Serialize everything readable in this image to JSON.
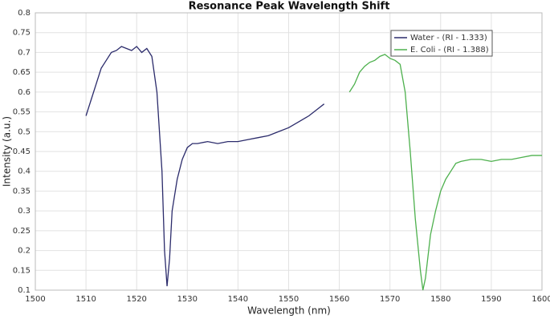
{
  "chart_data": {
    "type": "line",
    "title": "Resonance Peak Wavelength Shift",
    "x_label": "Wavelength (nm)",
    "y_label": "Intensity (a.u.)",
    "xlim": [
      1500,
      1600
    ],
    "xticks": [
      1500,
      1510,
      1520,
      1530,
      1540,
      1550,
      1560,
      1570,
      1580,
      1590,
      1600
    ],
    "ylim": [
      0.1,
      0.8
    ],
    "yticks": [
      0.1,
      0.15,
      0.2,
      0.25,
      0.3,
      0.35,
      0.4,
      0.45,
      0.5,
      0.55,
      0.6,
      0.65,
      0.7,
      0.75,
      0.8
    ],
    "grid": true,
    "legend": "upper right",
    "series": [
      {
        "name": "Water - (RI - 1.333)",
        "color": "#2b2b6b",
        "x": [
          1510,
          1511,
          1512,
          1513,
          1514,
          1515,
          1516,
          1517,
          1518,
          1519,
          1520,
          1521,
          1522,
          1523,
          1524,
          1525,
          1525.5,
          1526,
          1526.5,
          1527,
          1528,
          1529,
          1530,
          1531,
          1532,
          1534,
          1536,
          1538,
          1540,
          1542,
          1544,
          1546,
          1548,
          1550,
          1552,
          1554,
          1556,
          1557
        ],
        "values": [
          0.54,
          0.58,
          0.62,
          0.66,
          0.68,
          0.7,
          0.705,
          0.715,
          0.71,
          0.705,
          0.715,
          0.7,
          0.71,
          0.69,
          0.6,
          0.4,
          0.2,
          0.11,
          0.18,
          0.3,
          0.38,
          0.43,
          0.46,
          0.47,
          0.47,
          0.475,
          0.47,
          0.475,
          0.475,
          0.48,
          0.485,
          0.49,
          0.5,
          0.51,
          0.525,
          0.54,
          0.56,
          0.57
        ]
      },
      {
        "name": "E. Coli - (RI - 1.388)",
        "color": "#4db04d",
        "x": [
          1562,
          1563,
          1564,
          1565,
          1566,
          1567,
          1568,
          1569,
          1570,
          1571,
          1572,
          1573,
          1574,
          1575,
          1576,
          1576.5,
          1577,
          1578,
          1579,
          1580,
          1581,
          1582,
          1583,
          1584,
          1586,
          1588,
          1590,
          1592,
          1594,
          1596,
          1598,
          1600
        ],
        "values": [
          0.6,
          0.62,
          0.65,
          0.665,
          0.675,
          0.68,
          0.69,
          0.695,
          0.685,
          0.68,
          0.67,
          0.6,
          0.45,
          0.28,
          0.15,
          0.1,
          0.13,
          0.24,
          0.3,
          0.35,
          0.38,
          0.4,
          0.42,
          0.425,
          0.43,
          0.43,
          0.425,
          0.43,
          0.43,
          0.435,
          0.44,
          0.44
        ]
      }
    ]
  }
}
